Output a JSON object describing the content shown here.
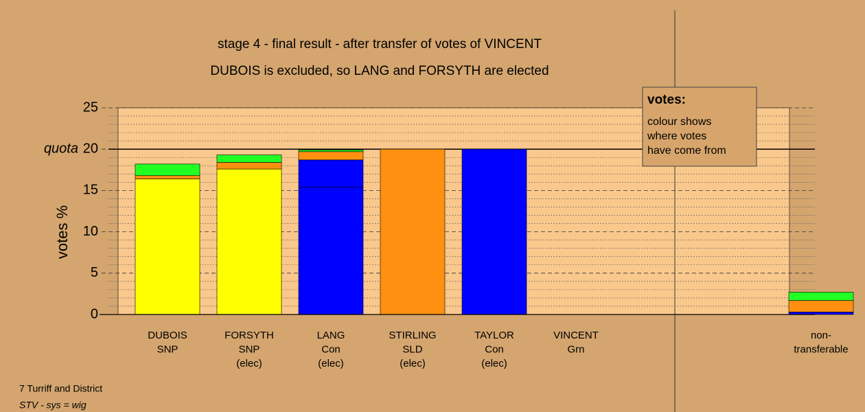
{
  "chart_data": {
    "type": "bar",
    "title": "stage 4 - final result - after transfer of votes of VINCENT",
    "subtitle": "DUBOIS is excluded, so LANG and FORSYTH are elected",
    "y_label": "votes %",
    "quota_label": "quota",
    "quota": 20,
    "categories": [
      [
        "DUBOIS",
        "SNP"
      ],
      [
        "FORSYTH",
        "SNP",
        "(elec)"
      ],
      [
        "LANG",
        "Con",
        "(elec)"
      ],
      [
        "STIRLING",
        "SLD",
        "(elec)"
      ],
      [
        "TAYLOR",
        "Con",
        "(elec)"
      ],
      [
        "VINCENT",
        "Grn"
      ],
      [
        "non-",
        "transferable"
      ]
    ],
    "series": [
      {
        "color": "#ffff00",
        "values": [
          16.4,
          17.6,
          0,
          0,
          0,
          0,
          0
        ]
      },
      {
        "color": "#0000ff",
        "values": [
          0,
          0,
          15.4,
          0,
          20,
          0,
          0.3
        ]
      },
      {
        "color": "#0000ff",
        "values": [
          0,
          0,
          3.3,
          0,
          0,
          0,
          0
        ]
      },
      {
        "color": "#ff9010",
        "values": [
          0.4,
          0.8,
          1.0,
          20,
          0,
          0,
          1.4
        ]
      },
      {
        "color": "#22ff22",
        "values": [
          1.4,
          0.9,
          0.2,
          0,
          0,
          0,
          1.0
        ]
      }
    ],
    "ylim": [
      0,
      25
    ],
    "yticks": [
      0,
      5,
      10,
      15,
      20,
      25
    ],
    "minor_yticks": [
      1,
      2,
      3,
      4,
      6,
      7,
      8,
      9,
      11,
      12,
      13,
      14,
      16,
      17,
      18,
      19,
      21,
      22,
      23,
      24
    ],
    "legend": {
      "title": "votes:",
      "lines": [
        "colour shows",
        "where votes",
        "have come from"
      ]
    },
    "footer": [
      "7 Turriff and District",
      "STV - sys = wig"
    ]
  }
}
